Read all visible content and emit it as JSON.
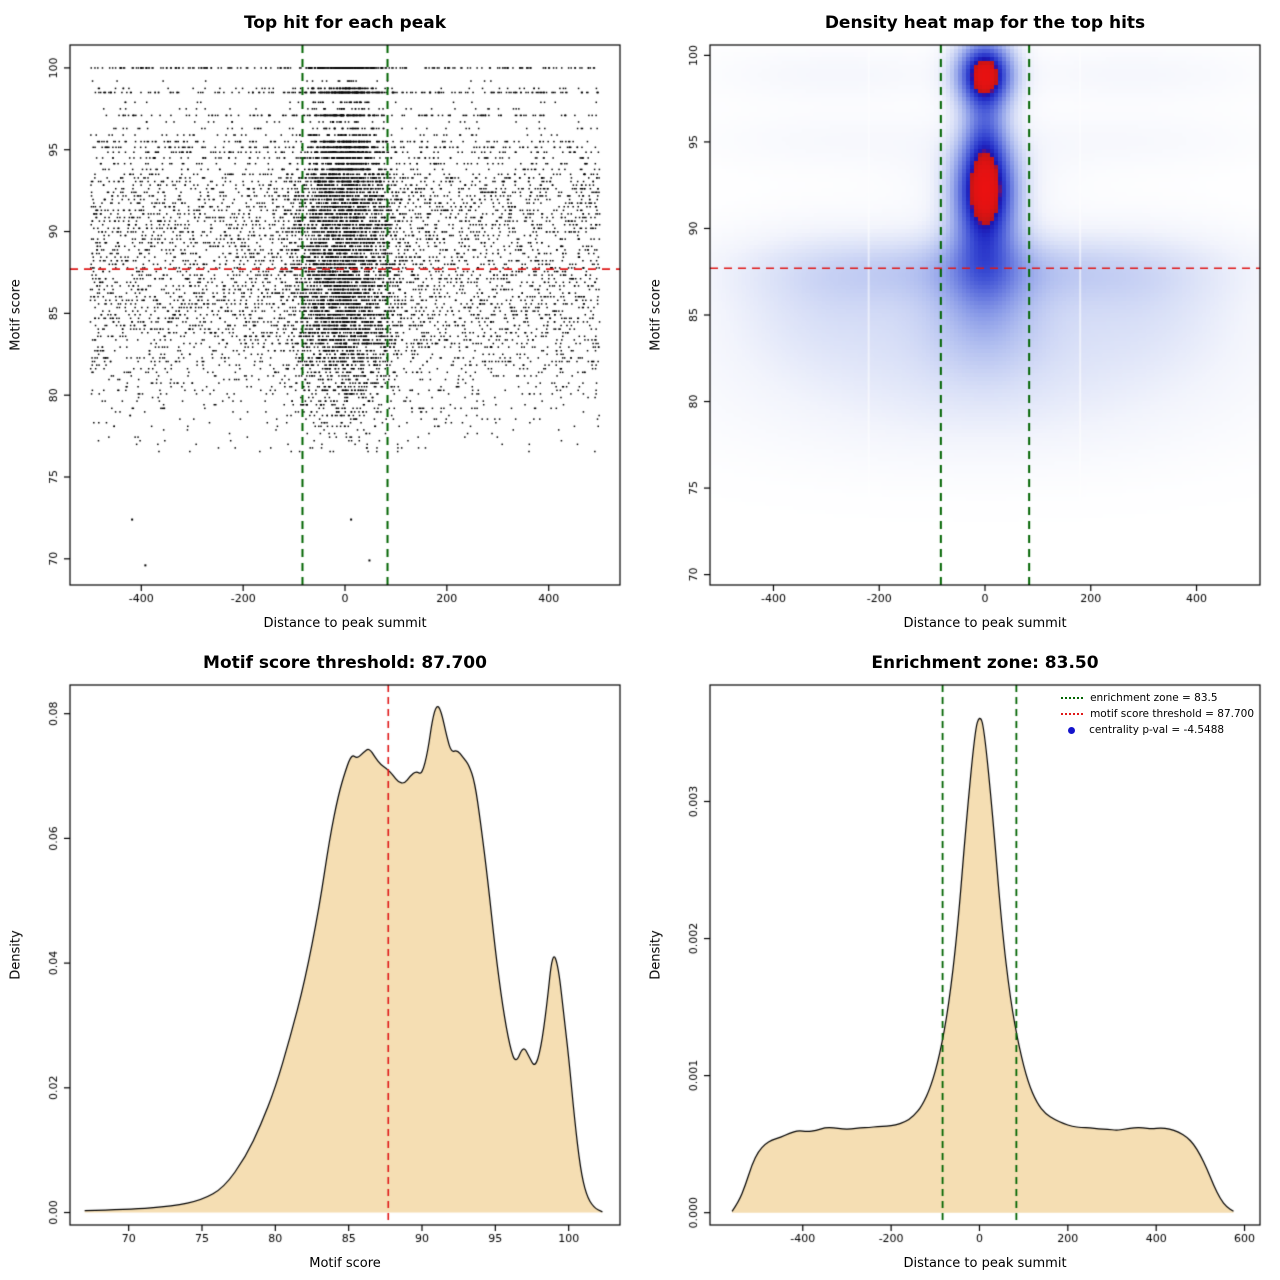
{
  "chart_data": [
    {
      "id": "top-hits-scatter",
      "type": "scatter",
      "title": "Top hit for each peak",
      "xlabel": "Distance to peak summit",
      "ylabel": "Motif score",
      "xlim": [
        -540,
        540
      ],
      "ylim": [
        68.4,
        101.4
      ],
      "xticks": {
        "values": [
          -400,
          -200,
          0,
          200,
          400
        ],
        "labels": [
          "-400",
          "-200",
          "0",
          "200",
          "400"
        ]
      },
      "yticks": {
        "values": [
          70,
          75,
          80,
          85,
          90,
          95,
          100
        ],
        "labels": [
          "70",
          "75",
          "80",
          "85",
          "90",
          "95",
          "100"
        ]
      },
      "point_color": "#000000",
      "n_points": 11000,
      "seed": 1337,
      "x_model": {
        "central_fraction": 0.44,
        "central_fraction_banded": 0.5,
        "central_sd": 52,
        "central_sd_banded": 38,
        "uniform_min": -500,
        "uniform_max": 500
      },
      "y_model": {
        "quantum": 0.22,
        "band_threshold": 93.6,
        "bands": [
          [
            93.8,
            1.3
          ],
          [
            94.15,
            1.1
          ],
          [
            94.5,
            1.3
          ],
          [
            94.85,
            1.5
          ],
          [
            95.15,
            2.0
          ],
          [
            95.5,
            1.5
          ],
          [
            95.9,
            0.7
          ],
          [
            96.3,
            0.5
          ],
          [
            96.7,
            0.4
          ],
          [
            97.1,
            1.5
          ],
          [
            97.5,
            0.35
          ],
          [
            97.9,
            0.3
          ],
          [
            98.5,
            2.4
          ],
          [
            98.75,
            0.9
          ],
          [
            99.2,
            0.15
          ],
          [
            100.0,
            2.6
          ]
        ]
      },
      "extra_points": [
        [
          -418,
          72.4
        ],
        [
          12,
          72.4
        ],
        [
          -392,
          69.6
        ],
        [
          48,
          69.9
        ]
      ],
      "lines": [
        {
          "orient": "h",
          "v": 87.7,
          "color": "#e01818",
          "width": 1.8,
          "dash": [
            8,
            6
          ]
        },
        {
          "orient": "v",
          "v": -83.5,
          "color": "#006400",
          "width": 2,
          "dash": [
            8,
            6
          ]
        },
        {
          "orient": "v",
          "v": 83.5,
          "color": "#006400",
          "width": 2,
          "dash": [
            8,
            6
          ]
        }
      ]
    },
    {
      "id": "top-hits-heatmap",
      "type": "heatmap",
      "title": "Density heat map for the top hits",
      "xlabel": "Distance to peak summit",
      "ylabel": "Motif score",
      "xlim": [
        -520,
        520
      ],
      "ylim": [
        69.4,
        100.6
      ],
      "xticks": {
        "values": [
          -400,
          -200,
          0,
          200,
          400
        ],
        "labels": [
          "-400",
          "-200",
          "0",
          "200",
          "400"
        ]
      },
      "yticks": {
        "values": [
          70,
          75,
          80,
          85,
          90,
          95,
          100
        ],
        "labels": [
          "70",
          "75",
          "80",
          "85",
          "90",
          "95",
          "100"
        ]
      },
      "grid_step": 4,
      "components": [
        {
          "x": 0,
          "y": 98.9,
          "sx": 38,
          "sy": 1.45,
          "a": 1.6
        },
        {
          "x": 0,
          "y": 92.2,
          "sx": 42,
          "sy": 2.1,
          "a": 1.5
        },
        {
          "x": 0,
          "y": 95.4,
          "sx": 30,
          "sy": 1.5,
          "a": 0.5
        },
        {
          "x": 0,
          "y": 88.0,
          "sx": 50,
          "sy": 2.3,
          "a": 0.4
        },
        {
          "x": 0,
          "y": 85.3,
          "sx": 85,
          "sy": 2.8,
          "a": 0.3
        },
        {
          "x": 0,
          "y": 87.8,
          "sx": 290,
          "sy": 1.4,
          "a": 0.3
        },
        {
          "x": 0,
          "y": 84.3,
          "sx": 340,
          "sy": 3.0,
          "a": 0.18
        },
        {
          "x": -300,
          "y": 86.0,
          "sx": 135,
          "sy": 2.8,
          "a": 0.18
        },
        {
          "x": 300,
          "y": 86.0,
          "sx": 135,
          "sy": 2.8,
          "a": 0.17
        },
        {
          "x": 0,
          "y": 80.6,
          "sx": 330,
          "sy": 2.5,
          "a": 0.12
        },
        {
          "x": -280,
          "y": 98.9,
          "sx": 170,
          "sy": 1.1,
          "a": 0.1
        },
        {
          "x": 280,
          "y": 98.9,
          "sx": 170,
          "sy": 1.1,
          "a": 0.1
        },
        {
          "x": -280,
          "y": 95.1,
          "sx": 180,
          "sy": 1.2,
          "a": 0.08
        },
        {
          "x": 280,
          "y": 95.1,
          "sx": 180,
          "sy": 1.2,
          "a": 0.08
        },
        {
          "x": 0,
          "y": 93.3,
          "sx": 110,
          "sy": 1.8,
          "a": 0.1
        },
        {
          "x": 0,
          "y": 78.0,
          "sx": 300,
          "sy": 2.2,
          "a": 0.05
        }
      ],
      "colormap": [
        [
          0,
          "#ffffff"
        ],
        [
          0.08,
          "#f2f4fc"
        ],
        [
          0.18,
          "#d8dff7"
        ],
        [
          0.3,
          "#b3c0f0"
        ],
        [
          0.42,
          "#8b9ce8"
        ],
        [
          0.54,
          "#6274de"
        ],
        [
          0.65,
          "#3c4ed4"
        ],
        [
          0.74,
          "#222cc6"
        ],
        [
          0.79,
          "#1c17b2"
        ],
        [
          0.8,
          "#3d119e"
        ],
        [
          0.815,
          "#c41515"
        ],
        [
          0.9,
          "#df1212"
        ],
        [
          1,
          "#ea1111"
        ]
      ],
      "white_lines_x": [
        -220,
        180
      ],
      "lines": [
        {
          "orient": "h",
          "v": 87.7,
          "color": "#e01818",
          "width": 1.6,
          "dash": [
            8,
            6
          ]
        },
        {
          "orient": "v",
          "v": -83.5,
          "color": "#006400",
          "width": 2,
          "dash": [
            8,
            6
          ]
        },
        {
          "orient": "v",
          "v": 83.5,
          "color": "#006400",
          "width": 2,
          "dash": [
            8,
            6
          ]
        }
      ]
    },
    {
      "id": "score-density",
      "type": "density",
      "title": "Motif score threshold: 87.700",
      "xlabel": "Motif score",
      "ylabel": "Density",
      "xlim": [
        66,
        103.5
      ],
      "ylim": [
        -0.002,
        0.0846
      ],
      "xticks": {
        "values": [
          70,
          75,
          80,
          85,
          90,
          95,
          100
        ],
        "labels": [
          "70",
          "75",
          "80",
          "85",
          "90",
          "95",
          "100"
        ]
      },
      "yticks": {
        "values": [
          0,
          0.02,
          0.04,
          0.06,
          0.08
        ],
        "labels": [
          "0.00",
          "0.02",
          "0.04",
          "0.06",
          "0.08"
        ]
      },
      "fill": "#f5deb3",
      "stroke": "#000000",
      "curve": {
        "x": [
          67,
          70,
          73,
          75,
          76.5,
          78,
          79,
          80,
          81,
          82,
          83,
          83.7,
          84.3,
          84.8,
          85.2,
          85.6,
          86,
          86.4,
          86.8,
          87.2,
          87.6,
          88,
          88.4,
          88.8,
          89.2,
          89.6,
          90,
          90.4,
          90.7,
          91,
          91.3,
          91.7,
          92,
          92.4,
          92.8,
          93.2,
          93.6,
          94,
          94.5,
          95,
          95.5,
          96,
          96.4,
          96.9,
          97.3,
          97.7,
          98.1,
          98.5,
          98.9,
          99.3,
          99.7,
          100,
          100.4,
          100.8,
          101.2,
          101.7,
          102.3
        ],
        "y": [
          0.0003,
          0.0005,
          0.001,
          0.002,
          0.004,
          0.009,
          0.014,
          0.02,
          0.028,
          0.037,
          0.049,
          0.06,
          0.067,
          0.071,
          0.0735,
          0.0728,
          0.0738,
          0.0745,
          0.073,
          0.0718,
          0.0712,
          0.0702,
          0.069,
          0.0688,
          0.07,
          0.0708,
          0.0702,
          0.074,
          0.079,
          0.0815,
          0.0805,
          0.0762,
          0.0738,
          0.0742,
          0.073,
          0.0718,
          0.069,
          0.0625,
          0.053,
          0.042,
          0.033,
          0.0265,
          0.0238,
          0.0268,
          0.025,
          0.0232,
          0.0262,
          0.033,
          0.042,
          0.0395,
          0.031,
          0.025,
          0.015,
          0.007,
          0.0028,
          0.0008,
          0.0001
        ]
      },
      "lines": [
        {
          "orient": "v",
          "v": 87.7,
          "color": "#e01818",
          "width": 1.6,
          "dash": [
            7,
            5
          ]
        }
      ]
    },
    {
      "id": "distance-density",
      "type": "density",
      "title": "Enrichment zone: 83.50",
      "xlabel": "Distance to peak summit",
      "ylabel": "Density",
      "xlim": [
        -610,
        635
      ],
      "ylim": [
        -9e-05,
        0.00385
      ],
      "xticks": {
        "values": [
          -400,
          -200,
          0,
          200,
          400,
          600
        ],
        "labels": [
          "-400",
          "-200",
          "0",
          "200",
          "400",
          "600"
        ]
      },
      "yticks": {
        "values": [
          0,
          0.001,
          0.002,
          0.003
        ],
        "labels": [
          "0.000",
          "0.001",
          "0.002",
          "0.003"
        ]
      },
      "fill": "#f5deb3",
      "stroke": "#000000",
      "curve": {
        "x": [
          -560,
          -545,
          -530,
          -515,
          -500,
          -485,
          -470,
          -450,
          -430,
          -410,
          -390,
          -370,
          -350,
          -330,
          -310,
          -290,
          -270,
          -250,
          -230,
          -210,
          -190,
          -170,
          -150,
          -130,
          -110,
          -90,
          -70,
          -50,
          -30,
          -10,
          0,
          10,
          30,
          50,
          70,
          90,
          110,
          130,
          150,
          170,
          190,
          210,
          230,
          250,
          270,
          290,
          310,
          330,
          350,
          370,
          390,
          410,
          430,
          450,
          470,
          485,
          500,
          515,
          530,
          545,
          560,
          575
        ],
        "y": [
          1e-05,
          8e-05,
          0.0002,
          0.00035,
          0.00045,
          0.0005,
          0.00053,
          0.00055,
          0.00058,
          0.0006,
          0.00059,
          0.0006,
          0.00062,
          0.00062,
          0.00061,
          0.00061,
          0.00062,
          0.00062,
          0.00063,
          0.00063,
          0.00064,
          0.00066,
          0.0007,
          0.00078,
          0.00092,
          0.00115,
          0.0015,
          0.00205,
          0.00285,
          0.00352,
          0.00363,
          0.00355,
          0.0029,
          0.0021,
          0.00155,
          0.0012,
          0.00095,
          0.0008,
          0.00072,
          0.00068,
          0.00065,
          0.00063,
          0.00062,
          0.00062,
          0.00061,
          0.00061,
          0.0006,
          0.00061,
          0.00062,
          0.00062,
          0.00061,
          0.00062,
          0.00061,
          0.00059,
          0.00055,
          0.0005,
          0.00042,
          0.00032,
          0.0002,
          0.0001,
          4e-05,
          1e-05
        ]
      },
      "lines": [
        {
          "orient": "v",
          "v": -83.5,
          "color": "#006400",
          "width": 1.8,
          "dash": [
            7,
            5
          ]
        },
        {
          "orient": "v",
          "v": 83.5,
          "color": "#006400",
          "width": 1.8,
          "dash": [
            7,
            5
          ]
        }
      ],
      "legend": {
        "items": [
          {
            "label": "enrichment zone = 83.5",
            "type": "dotted-line",
            "color": "#006400"
          },
          {
            "label": "motif score threshold = 87.700",
            "type": "dotted-line",
            "color": "#e01818"
          },
          {
            "label": "centrality p-val = -4.5488",
            "type": "point",
            "color": "#1414cc"
          }
        ]
      }
    }
  ]
}
